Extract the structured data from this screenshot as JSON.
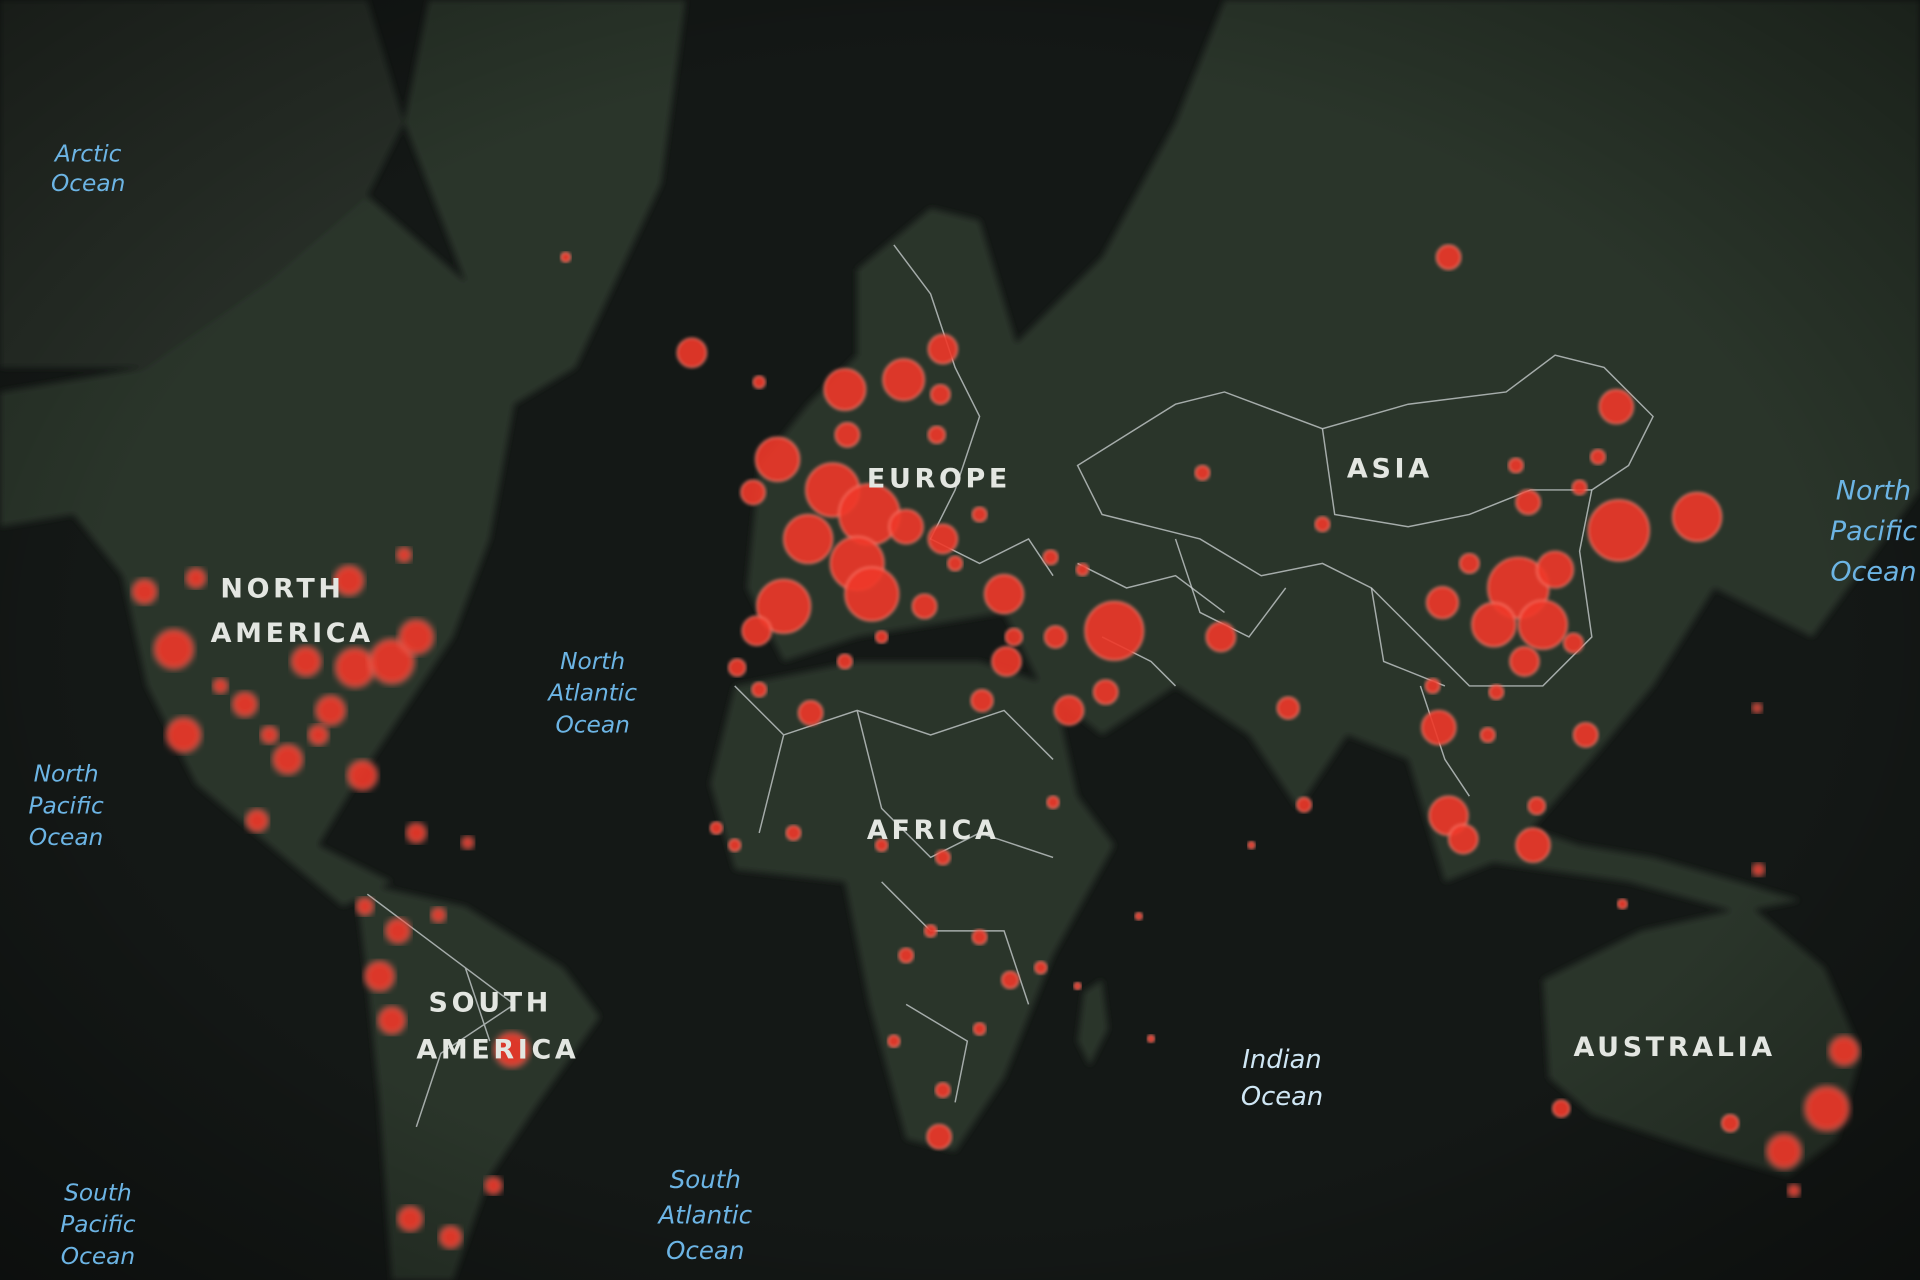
{
  "map": {
    "colors": {
      "ocean": "#141816",
      "land": "#2c352c",
      "marker": "#f0392a",
      "continent_label": "#e3e6e1",
      "ocean_label": "#6cb4e4"
    },
    "continents": {
      "north_america": [
        "NORTH",
        "AMERICA"
      ],
      "europe": "EUROPE",
      "asia": "ASIA",
      "africa": "AFRICA",
      "south_america": [
        "SOUTH",
        "AMERICA"
      ],
      "australia": "AUSTRALIA"
    },
    "oceans": {
      "arctic": [
        "Arctic",
        "Ocean"
      ],
      "north_atlantic": [
        "North",
        "Atlantic",
        "Ocean"
      ],
      "north_pacific_left": [
        "North",
        "Pacific",
        "Ocean"
      ],
      "north_pacific_right": [
        "North",
        "Pacific",
        "Ocean"
      ],
      "south_pacific": [
        "South",
        "Pacific",
        "Ocean"
      ],
      "south_atlantic": [
        "South",
        "Atlantic",
        "Ocean"
      ],
      "indian": [
        "Indian",
        "Ocean"
      ]
    },
    "marker_type": "proportional-circle"
  }
}
